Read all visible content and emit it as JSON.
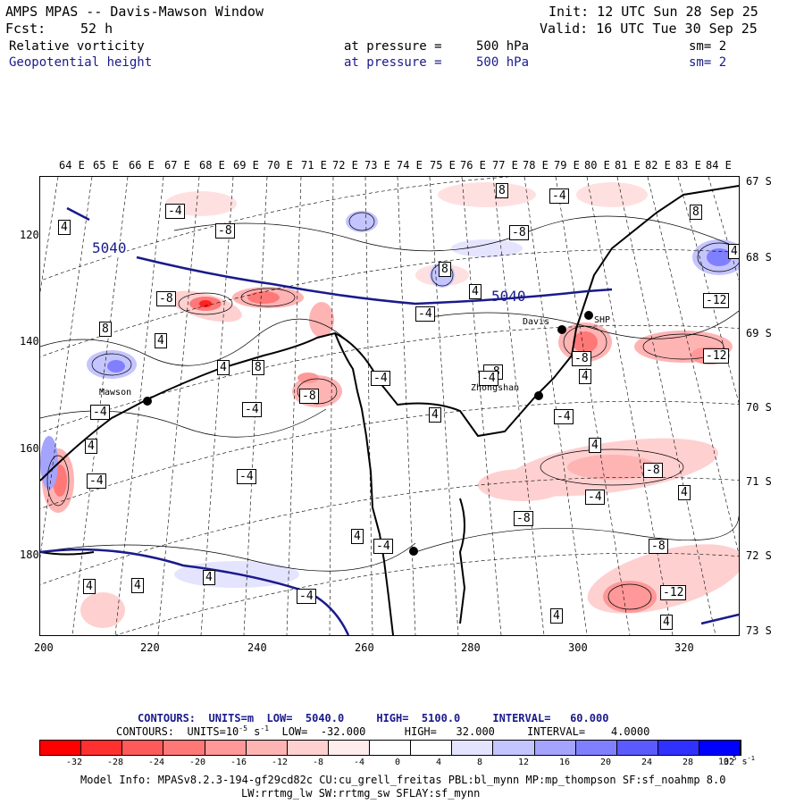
{
  "header": {
    "title": "AMPS MPAS -- Davis-Mawson Window",
    "fcst_label": "Fcst:",
    "fcst_value": "52 h",
    "init": "Init: 12 UTC Sun 28 Sep 25",
    "valid": "Valid: 16 UTC Tue 30 Sep 25",
    "field1": "Relative vorticity",
    "field2": "Geopotential height",
    "pressure_label": "at pressure =",
    "pressure_value": "500 hPa",
    "sm": "sm= 2"
  },
  "axes": {
    "lon_labels": [
      "64 E",
      "65 E",
      "66 E",
      "67 E",
      "68 E",
      "69 E",
      "70 E",
      "71 E",
      "72 E",
      "73 E",
      "74 E",
      "75 E",
      "76 E",
      "77 E",
      "78 E",
      "79 E",
      "80 E",
      "81 E",
      "82 E",
      "83 E",
      "84 E"
    ],
    "lat_labels": [
      "67 S",
      "68 S",
      "69 S",
      "70 S",
      "71 S",
      "72 S",
      "73 S"
    ],
    "y_ticks": [
      "120",
      "140",
      "160",
      "180"
    ],
    "x_ticks": [
      "200",
      "220",
      "240",
      "260",
      "280",
      "300",
      "320"
    ]
  },
  "stations": [
    {
      "name": "Mawson",
      "label": "Mawson"
    },
    {
      "name": "Davis",
      "label": "Davis"
    },
    {
      "name": "Zhongshan",
      "label": "Zhongshan"
    },
    {
      "name": "SHP",
      "label": "SHP"
    }
  ],
  "map_labels": {
    "contour_5040_a": "5040",
    "contour_5040_b": "5040"
  },
  "contour_values": [
    "-4",
    "-8",
    "4",
    "8",
    "-12",
    "-12",
    "-4",
    "4",
    "8",
    "-8",
    "4",
    "-4",
    "8",
    "4",
    "-4",
    "4",
    "-8",
    "-8",
    "4",
    "-4",
    "-4",
    "-8",
    "4",
    "4",
    "-4",
    "8",
    "-12",
    "4",
    "-4",
    "-8",
    "-4",
    "4",
    "-8",
    "4",
    "-4",
    "4",
    "4",
    "-4",
    "4",
    "8",
    "-4",
    "-8",
    "4",
    "-4",
    "-8",
    "4"
  ],
  "legend": {
    "line1_label": "CONTOURS:",
    "line1_units": "UNITS=m",
    "line1_low": "LOW=  5040.0",
    "line1_high": "HIGH=  5100.0",
    "line1_interval": "INTERVAL=   60.000",
    "line2_label": "CONTOURS:",
    "line2_units": "UNITS=10",
    "line2_units_sup": "-5",
    "line2_units_tail": " s",
    "line2_units_tail_sup": "-1",
    "line2_low": "LOW=  -32.000",
    "line2_high": "HIGH=   32.000",
    "line2_interval": "INTERVAL=    4.0000"
  },
  "colorbar": {
    "labels": [
      "-32",
      "-28",
      "-24",
      "-20",
      "-16",
      "-12",
      "-8",
      "-4",
      "0",
      "4",
      "8",
      "12",
      "16",
      "20",
      "24",
      "28",
      "32"
    ],
    "units": "10",
    "units_sup": "-5",
    "units_tail": " s",
    "units_tail_sup": "-1",
    "colors": [
      "#ff0000",
      "#ff3030",
      "#ff5a5a",
      "#ff7878",
      "#ff9898",
      "#ffb4b4",
      "#ffd0d0",
      "#ffecec",
      "#ffffff",
      "#ffffff",
      "#e4e4ff",
      "#c4c4ff",
      "#a4a4ff",
      "#8080ff",
      "#5a5aff",
      "#3030ff",
      "#0000ff"
    ]
  },
  "model_info": {
    "line1": "Model Info: MPASv8.2.3-194-gf29cd82c CU:cu_grell_freitas PBL:bl_mynn MP:mp_thompson SF:sf_noahmp 8.0",
    "line2": "LW:rrtmg_lw SW:rrtmg_sw SFLAY:sf_mynn"
  }
}
